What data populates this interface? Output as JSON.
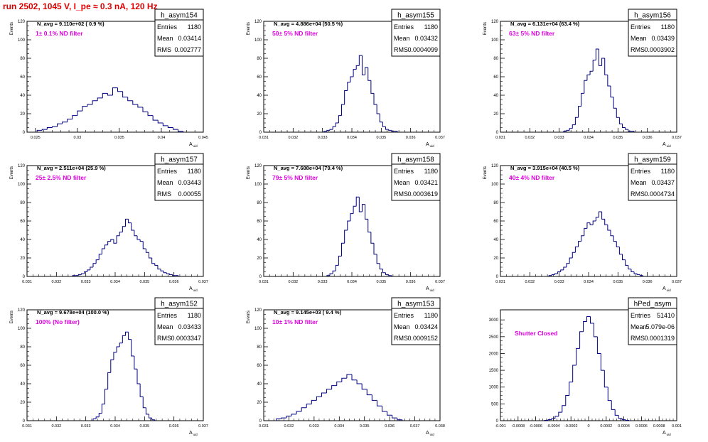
{
  "page": {
    "title": "run 2502,  1045 V, I_pe ≈ 0.3 nA, 120 Hz"
  },
  "colors": {
    "histogram": "#000080",
    "annotation": "#e000e0",
    "title": "#e00000",
    "frame": "#000000"
  },
  "chart_data": [
    {
      "type": "histogram",
      "hist_name": "h_asym154",
      "stats": {
        "entries_label": "Entries",
        "entries": "1180",
        "mean_label": "Mean",
        "mean": "0.03414",
        "rms_label": "RMS",
        "rms": "0.002777"
      },
      "navg": "N_avg = 9.110e+02 ( 0.9 %)",
      "filter": "1± 0.1% ND filter",
      "ylabel": "Events",
      "xlabel": "A_uid",
      "xlim": [
        0.024,
        0.045
      ],
      "ylim": [
        0,
        120
      ],
      "xticks": [
        0.025,
        0.03,
        0.035,
        0.04,
        0.045
      ],
      "xtick_labels": [
        "0.025",
        "0.03",
        "0.035",
        "0.04",
        "0.045"
      ],
      "yticks": [
        0,
        20,
        40,
        60,
        80,
        100,
        120
      ],
      "ytick_labels": [
        "0",
        "20",
        "40",
        "60",
        "80",
        "100",
        "120"
      ],
      "x": [
        0.0255,
        0.0261,
        0.0267,
        0.0273,
        0.0279,
        0.0285,
        0.0291,
        0.0297,
        0.0303,
        0.0309,
        0.0315,
        0.0321,
        0.0327,
        0.0333,
        0.0339,
        0.0345,
        0.0351,
        0.0357,
        0.0363,
        0.0369,
        0.0375,
        0.0381,
        0.0387,
        0.0393,
        0.0399,
        0.0405,
        0.0411,
        0.0417,
        0.0423
      ],
      "values": [
        2,
        3,
        5,
        6,
        9,
        11,
        14,
        18,
        23,
        28,
        30,
        34,
        37,
        42,
        40,
        48,
        44,
        38,
        34,
        30,
        27,
        22,
        18,
        13,
        10,
        7,
        5,
        3,
        1
      ]
    },
    {
      "type": "histogram",
      "hist_name": "h_asym155",
      "stats": {
        "entries_label": "Entries",
        "entries": "1180",
        "mean_label": "Mean",
        "mean": "0.03432",
        "rms_label": "RMS",
        "rms": "0.0004099"
      },
      "navg": "N_avg = 4.886e+04 (50.5 %)",
      "filter": "50± 5% ND filter",
      "ylabel": "Events",
      "xlabel": "A_uid",
      "xlim": [
        0.031,
        0.037
      ],
      "ylim": [
        0,
        120
      ],
      "xticks": [
        0.031,
        0.032,
        0.033,
        0.034,
        0.035,
        0.036,
        0.037
      ],
      "xtick_labels": [
        "0.031",
        "0.032",
        "0.033",
        "0.034",
        "0.035",
        "0.036",
        "0.037"
      ],
      "yticks": [
        0,
        20,
        40,
        60,
        80,
        100,
        120
      ],
      "ytick_labels": [
        "0",
        "20",
        "40",
        "60",
        "80",
        "100",
        "120"
      ],
      "x": [
        0.0331,
        0.0332,
        0.0333,
        0.0334,
        0.0335,
        0.0336,
        0.0337,
        0.0338,
        0.0339,
        0.034,
        0.0341,
        0.0342,
        0.0343,
        0.0344,
        0.0345,
        0.0346,
        0.0347,
        0.0348,
        0.0349,
        0.035,
        0.0351,
        0.0352,
        0.0353,
        0.0354,
        0.0355
      ],
      "values": [
        1,
        2,
        3,
        6,
        10,
        18,
        30,
        45,
        54,
        60,
        68,
        72,
        83,
        62,
        70,
        56,
        42,
        30,
        20,
        11,
        6,
        3,
        2,
        1,
        1
      ]
    },
    {
      "type": "histogram",
      "hist_name": "h_asym156",
      "stats": {
        "entries_label": "Entries",
        "entries": "1180",
        "mean_label": "Mean",
        "mean": "0.03439",
        "rms_label": "RMS",
        "rms": "0.0003902"
      },
      "navg": "N_avg = 6.131e+04 (63.4 %)",
      "filter": "63± 5% ND filter",
      "ylabel": "Events",
      "xlabel": "A_uid",
      "xlim": [
        0.031,
        0.037
      ],
      "ylim": [
        0,
        120
      ],
      "xticks": [
        0.031,
        0.032,
        0.033,
        0.034,
        0.035,
        0.036,
        0.037
      ],
      "xtick_labels": [
        "0.031",
        "0.032",
        "0.033",
        "0.034",
        "0.035",
        "0.036",
        "0.037"
      ],
      "yticks": [
        0,
        20,
        40,
        60,
        80,
        100,
        120
      ],
      "ytick_labels": [
        "0",
        "20",
        "40",
        "60",
        "80",
        "100",
        "120"
      ],
      "x": [
        0.0332,
        0.0333,
        0.0334,
        0.0335,
        0.0336,
        0.0337,
        0.0338,
        0.0339,
        0.034,
        0.0341,
        0.0342,
        0.0343,
        0.0344,
        0.0345,
        0.0346,
        0.0347,
        0.0348,
        0.0349,
        0.035,
        0.0351,
        0.0352,
        0.0353,
        0.0354,
        0.0355
      ],
      "values": [
        1,
        2,
        4,
        8,
        16,
        28,
        42,
        56,
        62,
        66,
        78,
        90,
        72,
        80,
        62,
        50,
        38,
        26,
        16,
        9,
        5,
        3,
        1,
        1
      ]
    },
    {
      "type": "histogram",
      "hist_name": "h_asym157",
      "stats": {
        "entries_label": "Entries",
        "entries": "1180",
        "mean_label": "Mean",
        "mean": "0.03443",
        "rms_label": "RMS",
        "rms": "0.00055"
      },
      "navg": "N_avg = 2.511e+04 (25.9 %)",
      "filter": "25± 2.5% ND filter",
      "ylabel": "Events",
      "xlabel": "A_uid",
      "xlim": [
        0.031,
        0.037
      ],
      "ylim": [
        0,
        120
      ],
      "xticks": [
        0.031,
        0.032,
        0.033,
        0.034,
        0.035,
        0.036,
        0.037
      ],
      "xtick_labels": [
        "0.031",
        "0.032",
        "0.033",
        "0.034",
        "0.035",
        "0.036",
        "0.037"
      ],
      "yticks": [
        0,
        20,
        40,
        60,
        80,
        100,
        120
      ],
      "ytick_labels": [
        "0",
        "20",
        "40",
        "60",
        "80",
        "100",
        "120"
      ],
      "x": [
        0.0326,
        0.0327,
        0.0328,
        0.0329,
        0.033,
        0.0331,
        0.0332,
        0.0333,
        0.0334,
        0.0335,
        0.0336,
        0.0337,
        0.0338,
        0.0339,
        0.034,
        0.0341,
        0.0342,
        0.0343,
        0.0344,
        0.0345,
        0.0346,
        0.0347,
        0.0348,
        0.0349,
        0.035,
        0.0351,
        0.0352,
        0.0353,
        0.0354,
        0.0355,
        0.0356,
        0.0357,
        0.0358,
        0.0359,
        0.036,
        0.0361
      ],
      "values": [
        1,
        1,
        2,
        3,
        5,
        7,
        10,
        14,
        18,
        24,
        30,
        34,
        38,
        40,
        36,
        44,
        48,
        54,
        62,
        58,
        50,
        44,
        40,
        38,
        30,
        26,
        20,
        14,
        12,
        8,
        6,
        4,
        3,
        2,
        1,
        1
      ]
    },
    {
      "type": "histogram",
      "hist_name": "h_asym158",
      "stats": {
        "entries_label": "Entries",
        "entries": "1180",
        "mean_label": "Mean",
        "mean": "0.03421",
        "rms_label": "RMS",
        "rms": "0.0003619"
      },
      "navg": "N_avg = 7.688e+04 (79.4 %)",
      "filter": "79± 5% ND filter",
      "ylabel": "Events",
      "xlabel": "A_uid",
      "xlim": [
        0.031,
        0.037
      ],
      "ylim": [
        0,
        120
      ],
      "xticks": [
        0.031,
        0.032,
        0.033,
        0.034,
        0.035,
        0.036,
        0.037
      ],
      "xtick_labels": [
        "0.031",
        "0.032",
        "0.033",
        "0.034",
        "0.035",
        "0.036",
        "0.037"
      ],
      "yticks": [
        0,
        20,
        40,
        60,
        80,
        100,
        120
      ],
      "ytick_labels": [
        "0",
        "20",
        "40",
        "60",
        "80",
        "100",
        "120"
      ],
      "x": [
        0.0332,
        0.0333,
        0.0334,
        0.0335,
        0.0336,
        0.0337,
        0.0338,
        0.0339,
        0.034,
        0.0341,
        0.0342,
        0.0343,
        0.0344,
        0.0345,
        0.0346,
        0.0347,
        0.0348,
        0.0349,
        0.035,
        0.0351,
        0.0352,
        0.0353
      ],
      "values": [
        1,
        3,
        6,
        12,
        22,
        36,
        50,
        60,
        68,
        76,
        86,
        70,
        78,
        62,
        48,
        36,
        24,
        14,
        8,
        4,
        2,
        1
      ]
    },
    {
      "type": "histogram",
      "hist_name": "h_asym159",
      "stats": {
        "entries_label": "Entries",
        "entries": "1180",
        "mean_label": "Mean",
        "mean": "0.03437",
        "rms_label": "RMS",
        "rms": "0.0004734"
      },
      "navg": "N_avg = 3.915e+04 (40.5 %)",
      "filter": "40± 4% ND filter",
      "ylabel": "Events",
      "xlabel": "A_uid",
      "xlim": [
        0.031,
        0.037
      ],
      "ylim": [
        0,
        120
      ],
      "xticks": [
        0.031,
        0.032,
        0.033,
        0.034,
        0.035,
        0.036,
        0.037
      ],
      "xtick_labels": [
        "0.031",
        "0.032",
        "0.033",
        "0.034",
        "0.035",
        "0.036",
        "0.037"
      ],
      "yticks": [
        0,
        20,
        40,
        60,
        80,
        100,
        120
      ],
      "ytick_labels": [
        "0",
        "20",
        "40",
        "60",
        "80",
        "100",
        "120"
      ],
      "x": [
        0.0327,
        0.0328,
        0.0329,
        0.033,
        0.0331,
        0.0332,
        0.0333,
        0.0334,
        0.0335,
        0.0336,
        0.0337,
        0.0338,
        0.0339,
        0.034,
        0.0341,
        0.0342,
        0.0343,
        0.0344,
        0.0345,
        0.0346,
        0.0347,
        0.0348,
        0.0349,
        0.035,
        0.0351,
        0.0352,
        0.0353,
        0.0354,
        0.0355,
        0.0356,
        0.0357,
        0.0358
      ],
      "values": [
        1,
        2,
        3,
        5,
        7,
        10,
        14,
        20,
        26,
        32,
        38,
        44,
        52,
        58,
        56,
        60,
        64,
        70,
        62,
        56,
        50,
        44,
        38,
        32,
        24,
        18,
        12,
        8,
        5,
        3,
        2,
        1
      ]
    },
    {
      "type": "histogram",
      "hist_name": "h_asym152",
      "stats": {
        "entries_label": "Entries",
        "entries": "1180",
        "mean_label": "Mean",
        "mean": "0.03433",
        "rms_label": "RMS",
        "rms": "0.0003347"
      },
      "navg": "N_avg = 9.678e+04 (100.0 %)",
      "filter": "100% (No filter)",
      "ylabel": "Events",
      "xlabel": "A_uid",
      "xlim": [
        0.031,
        0.037
      ],
      "ylim": [
        0,
        120
      ],
      "xticks": [
        0.031,
        0.032,
        0.033,
        0.034,
        0.035,
        0.036,
        0.037
      ],
      "xtick_labels": [
        "0.031",
        "0.032",
        "0.033",
        "0.034",
        "0.035",
        "0.036",
        "0.037"
      ],
      "yticks": [
        0,
        20,
        40,
        60,
        80,
        100,
        120
      ],
      "ytick_labels": [
        "0",
        "20",
        "40",
        "60",
        "80",
        "100",
        "120"
      ],
      "x": [
        0.0333,
        0.0334,
        0.0335,
        0.0336,
        0.0337,
        0.0338,
        0.0339,
        0.034,
        0.0341,
        0.0342,
        0.0343,
        0.0344,
        0.0345,
        0.0346,
        0.0347,
        0.0348,
        0.0349,
        0.035,
        0.0351,
        0.0352,
        0.0353
      ],
      "values": [
        2,
        4,
        8,
        18,
        34,
        52,
        66,
        74,
        80,
        84,
        92,
        96,
        88,
        70,
        56,
        40,
        26,
        14,
        7,
        3,
        1
      ]
    },
    {
      "type": "histogram",
      "hist_name": "h_asym153",
      "stats": {
        "entries_label": "Entries",
        "entries": "1180",
        "mean_label": "Mean",
        "mean": "0.03424",
        "rms_label": "RMS",
        "rms": "0.0009152"
      },
      "navg": "N_avg = 9.145e+03 ( 9.4 %)",
      "filter": "10± 1% ND filter",
      "ylabel": "Events",
      "xlabel": "A_uid",
      "xlim": [
        0.031,
        0.038
      ],
      "ylim": [
        0,
        120
      ],
      "xticks": [
        0.031,
        0.032,
        0.033,
        0.034,
        0.035,
        0.036,
        0.037,
        0.038
      ],
      "xtick_labels": [
        "0.031",
        "0.032",
        "0.033",
        "0.034",
        "0.035",
        "0.036",
        "0.037",
        "0.038"
      ],
      "yticks": [
        0,
        20,
        40,
        60,
        80,
        100,
        120
      ],
      "ytick_labels": [
        "0",
        "20",
        "40",
        "60",
        "80",
        "100",
        "120"
      ],
      "x": [
        0.0316,
        0.0318,
        0.032,
        0.0322,
        0.0324,
        0.0326,
        0.0328,
        0.033,
        0.0332,
        0.0334,
        0.0336,
        0.0338,
        0.034,
        0.0342,
        0.0344,
        0.0346,
        0.0348,
        0.035,
        0.0352,
        0.0354,
        0.0356,
        0.0358,
        0.036,
        0.0362,
        0.0364
      ],
      "values": [
        2,
        3,
        5,
        7,
        10,
        14,
        18,
        22,
        26,
        30,
        34,
        38,
        42,
        46,
        50,
        44,
        40,
        34,
        28,
        22,
        16,
        10,
        6,
        3,
        1
      ]
    },
    {
      "type": "histogram",
      "hist_name": "hPed_asym",
      "stats": {
        "entries_label": "Entries",
        "entries": "51410",
        "mean_label": "Mean",
        "mean": "5.079e-06",
        "rms_label": "RMS",
        "rms": "0.0001319"
      },
      "navg": "",
      "filter": "Shutter Closed",
      "ylabel": "",
      "xlabel": "A_uid",
      "xlim": [
        -0.001,
        0.001
      ],
      "ylim": [
        0,
        3300
      ],
      "xticks": [
        -0.001,
        -0.0008,
        -0.0006,
        -0.0004,
        -0.0002,
        0,
        0.0002,
        0.0004,
        0.0006,
        0.0008,
        0.001
      ],
      "xtick_labels": [
        "-0.001",
        "-0.0008",
        "-0.0006",
        "-0.0004",
        "-0.0002",
        "0",
        "0.0002",
        "0.0004",
        "0.0006",
        "0.0008",
        "0.001"
      ],
      "yticks": [
        0,
        500,
        1000,
        1500,
        2000,
        2500,
        3000
      ],
      "ytick_labels": [
        "0",
        "500",
        "1000",
        "1500",
        "2000",
        "2500",
        "3000"
      ],
      "x": [
        -0.00048,
        -0.00044,
        -0.0004,
        -0.00036,
        -0.00032,
        -0.00028,
        -0.00024,
        -0.0002,
        -0.00016,
        -0.00012,
        -8e-05,
        -4e-05,
        0,
        4e-05,
        8e-05,
        0.00012,
        0.00016,
        0.0002,
        0.00024,
        0.00028,
        0.00032,
        0.00036,
        0.0004,
        0.00044
      ],
      "values": [
        10,
        30,
        60,
        130,
        250,
        450,
        750,
        1150,
        1650,
        2150,
        2650,
        2950,
        3100,
        2900,
        2500,
        2000,
        1500,
        1000,
        600,
        330,
        160,
        70,
        30,
        10
      ]
    }
  ]
}
